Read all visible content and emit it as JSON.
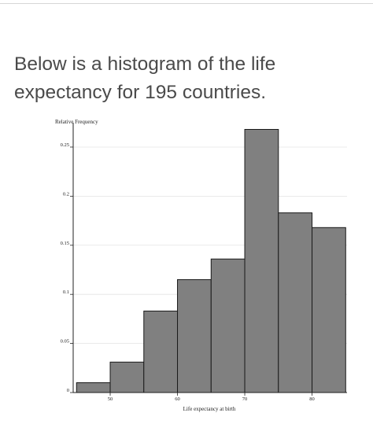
{
  "question": {
    "line1": "Below is a histogram of the life",
    "line2": "expectancy for 195 countries."
  },
  "chart_data": {
    "type": "bar",
    "title": "",
    "ylabel": "Relative Frequency",
    "xlabel": "Life expectancy at birth",
    "bin_edges": [
      45,
      50,
      55,
      60,
      65,
      70,
      75,
      80,
      85
    ],
    "values": [
      0.01,
      0.031,
      0.083,
      0.115,
      0.136,
      0.268,
      0.183,
      0.168
    ],
    "xlim": [
      44.5,
      85.2
    ],
    "ylim": [
      0,
      0.27
    ],
    "xticks": [
      50,
      60,
      70,
      80
    ],
    "xtick_labels": [
      "50",
      "60",
      "70",
      "80"
    ],
    "yticks": [
      0,
      0.05,
      0.1,
      0.15,
      0.2,
      0.25
    ],
    "ytick_labels": [
      "0",
      "0.05",
      "0.1",
      "0.15",
      "0.2",
      "0.25"
    ],
    "grid": true,
    "bar_color": "#808080",
    "edge_color": "#1a1a1a"
  }
}
